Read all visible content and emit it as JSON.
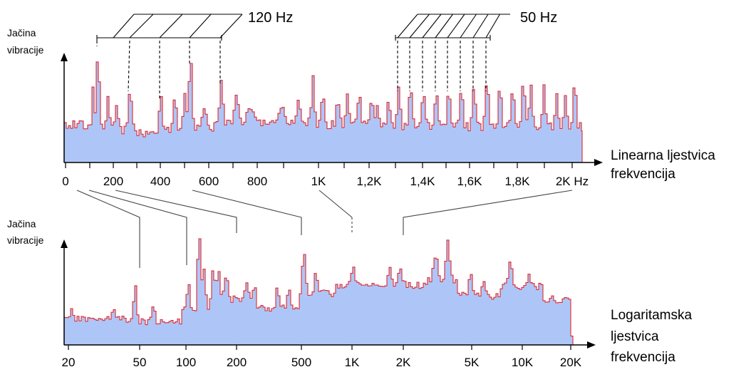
{
  "top": {
    "ylabel": [
      "Jačina",
      "vibracije"
    ],
    "axis_title": [
      "Linearna ljestvica",
      "frekvencija"
    ],
    "ticks": [
      "0",
      "200",
      "400",
      "600",
      "800",
      "1K",
      "1,2K",
      "1,4K",
      "1,6K",
      "1,8K",
      "2K Hz"
    ],
    "annotation_120": "120 Hz",
    "annotation_50": "50 Hz"
  },
  "bottom": {
    "ylabel": [
      "Jačina",
      "vibracije"
    ],
    "axis_title": [
      "Logaritamska",
      "ljestvica",
      "frekvencija"
    ],
    "ticks": [
      "20",
      "50",
      "100",
      "200",
      "500",
      "1K",
      "2K",
      "5K",
      "10K",
      "20K"
    ]
  },
  "colors": {
    "fill": "#aec6f7",
    "stroke": "#e0282e",
    "axis": "#000000",
    "connector": "#444444"
  },
  "chart_data": [
    {
      "type": "area",
      "x_scale": "linear",
      "xlim": [
        0,
        2150
      ],
      "x_ticks": [
        0,
        200,
        400,
        600,
        800,
        1000,
        1200,
        1400,
        1600,
        1800,
        2000
      ],
      "peak_harmonics_120hz": [
        120,
        240,
        360,
        480,
        600
      ],
      "peak_harmonics_50hz": [
        1300,
        1350,
        1400,
        1450,
        1500,
        1550,
        1600,
        1650
      ]
    },
    {
      "type": "area",
      "x_scale": "log",
      "xlim": [
        20,
        20000
      ],
      "x_ticks": [
        20,
        50,
        100,
        200,
        500,
        1000,
        2000,
        5000,
        10000,
        20000
      ]
    }
  ]
}
